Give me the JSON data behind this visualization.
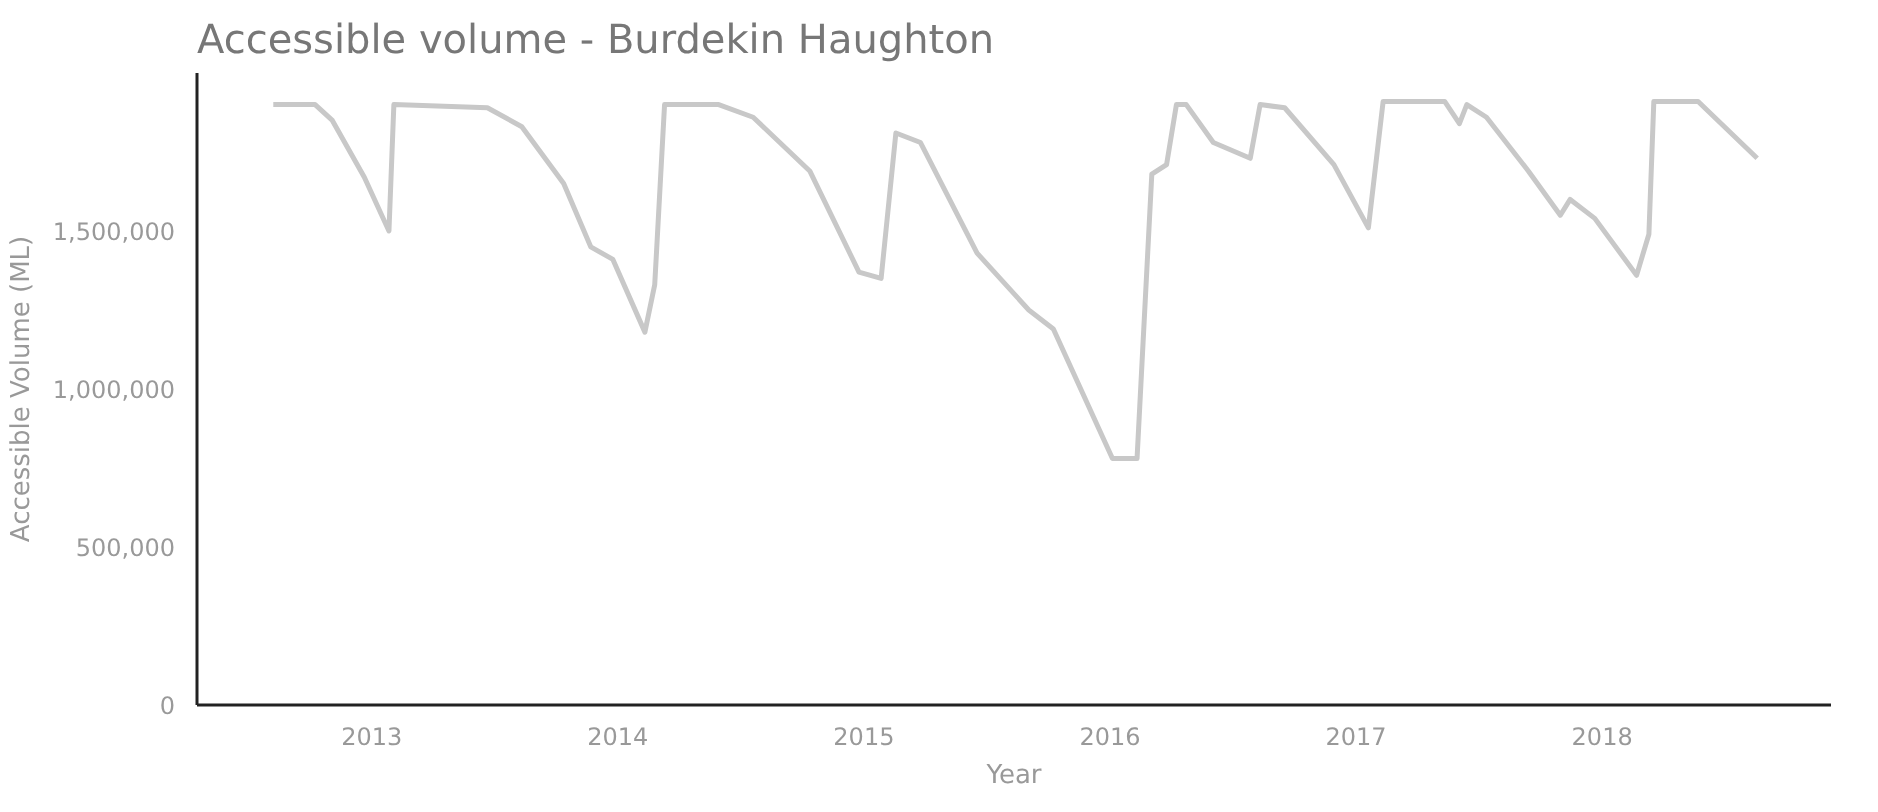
{
  "chart_data": {
    "type": "line",
    "title": "Accessible volume - Burdekin Haughton",
    "xlabel": "Year",
    "ylabel": "Accessible Volume (ML)",
    "x": [
      2012.6,
      2012.77,
      2012.84,
      2012.97,
      2013.07,
      2013.09,
      2013.47,
      2013.61,
      2013.78,
      2013.89,
      2013.98,
      2014.11,
      2014.15,
      2014.19,
      2014.41,
      2014.55,
      2014.78,
      2014.98,
      2015.07,
      2015.13,
      2015.23,
      2015.46,
      2015.67,
      2015.77,
      2016.01,
      2016.11,
      2016.17,
      2016.23,
      2016.27,
      2016.31,
      2016.42,
      2016.57,
      2016.61,
      2016.71,
      2016.91,
      2017.05,
      2017.11,
      2017.36,
      2017.42,
      2017.45,
      2017.53,
      2017.7,
      2017.83,
      2017.87,
      2017.97,
      2018.14,
      2018.19,
      2018.21,
      2018.39,
      2018.63
    ],
    "series": [
      {
        "color": "#c8c8c8",
        "values": [
          1900000,
          1900000,
          1850000,
          1670000,
          1500000,
          1900000,
          1890000,
          1830000,
          1650000,
          1450000,
          1410000,
          1180000,
          1330000,
          1900000,
          1900000,
          1860000,
          1690000,
          1370000,
          1350000,
          1810000,
          1780000,
          1430000,
          1250000,
          1190000,
          780000,
          780000,
          1680000,
          1710000,
          1900000,
          1900000,
          1780000,
          1730000,
          1900000,
          1890000,
          1710000,
          1510000,
          1910000,
          1910000,
          1840000,
          1900000,
          1860000,
          1690000,
          1550000,
          1600000,
          1540000,
          1360000,
          1490000,
          1910000,
          1910000,
          1730000
        ]
      }
    ],
    "xlim": [
      2012.29,
      2018.93
    ],
    "ylim": [
      0,
      2000000
    ],
    "xticks": [
      2013,
      2014,
      2015,
      2016,
      2017,
      2018
    ],
    "yticks": [
      0,
      {
        "value": 500000,
        "label": "500,000"
      },
      {
        "value": 1000000,
        "label": "1,000,000"
      },
      {
        "value": 1500000,
        "label": "1,500,000"
      }
    ],
    "grid": false,
    "marker": "none",
    "line_style": "solid"
  }
}
